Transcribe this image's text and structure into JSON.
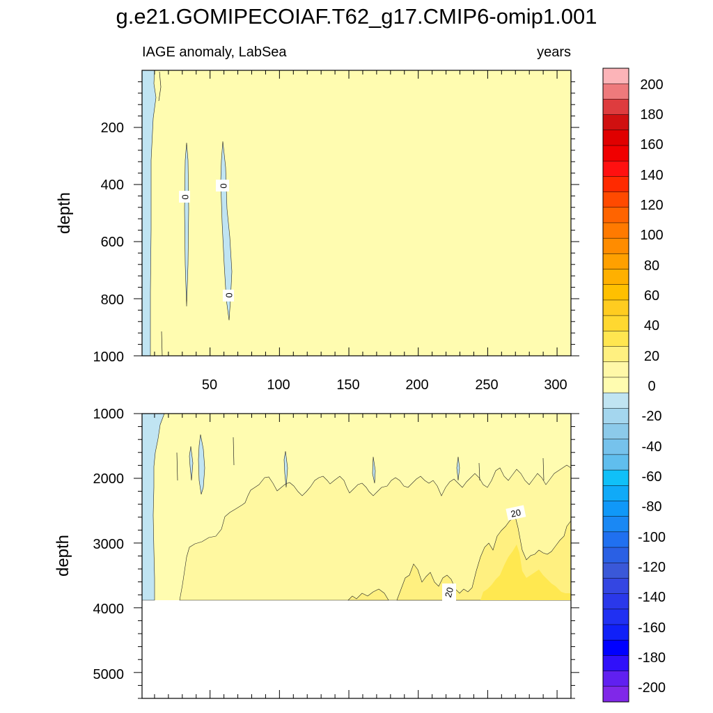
{
  "figure_title": "g.e21.GOMIPECOIAF.T62_g17.CMIP6-omip1.001",
  "chart_data": [
    {
      "type": "heatmap",
      "panel": "upper",
      "left_label": "IAGE anomaly, LabSea",
      "right_label": "years",
      "ylabel": "depth",
      "xlim": [
        1,
        310
      ],
      "ylim": [
        1000,
        0
      ],
      "x_ticks": [
        50,
        100,
        150,
        200,
        250,
        300
      ],
      "y_ticks": [
        200,
        400,
        600,
        800,
        1000
      ],
      "background_level": "0 to 10",
      "contour_labels": [
        {
          "text": "0",
          "x": 31,
          "depth": 440
        },
        {
          "text": "0",
          "x": 59,
          "depth": 405
        },
        {
          "text": "0",
          "x": 64,
          "depth": 790
        }
      ]
    },
    {
      "type": "heatmap",
      "panel": "lower",
      "ylabel": "depth",
      "xlim": [
        1,
        310
      ],
      "ylim": [
        1000,
        5400
      ],
      "y_ticks": [
        1000,
        2000,
        3000,
        4000,
        5000
      ],
      "data_bottom_depth": 3880,
      "contour_labels": [
        {
          "text": "20",
          "x": 270,
          "depth": 2620
        },
        {
          "text": "20",
          "x": 225,
          "depth": 3750
        }
      ]
    }
  ],
  "colorbar": {
    "labels": [
      "200",
      "180",
      "160",
      "140",
      "120",
      "100",
      "80",
      "60",
      "40",
      "20",
      "0",
      "-20",
      "-40",
      "-60",
      "-80",
      "-100",
      "-120",
      "-140",
      "-160",
      "-180",
      "-200"
    ],
    "colors": [
      "#FCB4B8",
      "#EE7A7C",
      "#DE3C3E",
      "#D01010",
      "#E00000",
      "#F00000",
      "#FF1010",
      "#FF2A00",
      "#FF4A00",
      "#FF6400",
      "#FF7A00",
      "#FF8C00",
      "#FFA000",
      "#FFB000",
      "#FFC000",
      "#FFCC20",
      "#FFD830",
      "#FFE650",
      "#FFF080",
      "#FFF8A8",
      "#FFFCB0",
      "#C0E4F2",
      "#A4D6EE",
      "#8CCAEA",
      "#76C2EC",
      "#60BEEE",
      "#10C0F8",
      "#10AAF8",
      "#1098F8",
      "#1A88F4",
      "#2070F0",
      "#2A60E4",
      "#3A58D8",
      "#3446E2",
      "#2A38EA",
      "#2030F2",
      "#1020F8",
      "#0000FF",
      "#3010FA",
      "#6020F0",
      "#8028E8"
    ]
  },
  "field_colors": {
    "level_0_10": "#FFFCB0",
    "level_10_20": "#FFF8A0",
    "level_20_30": "#FFF080",
    "level_30_40": "#FFE850",
    "level_neg": "#C0E4F2"
  }
}
